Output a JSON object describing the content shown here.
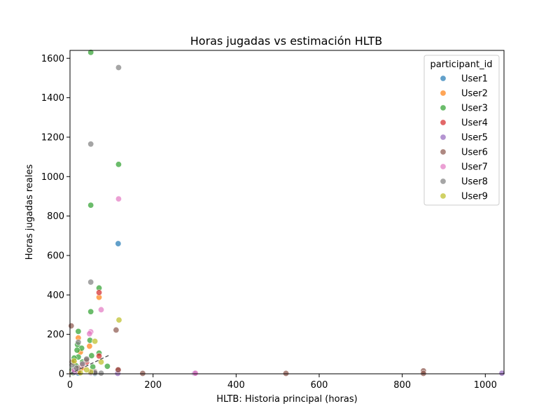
{
  "chart_data": {
    "type": "scatter",
    "title": "Horas jugadas vs estimación HLTB",
    "xlabel": "HLTB: Historia principal (horas)",
    "ylabel": "Horas jugadas reales",
    "xlim": [
      0,
      1045
    ],
    "ylim": [
      0,
      1640
    ],
    "x_ticks": [
      0,
      200,
      400,
      600,
      800,
      1000
    ],
    "y_ticks": [
      0,
      200,
      400,
      600,
      800,
      1000,
      1200,
      1400,
      1600
    ],
    "grid": false,
    "legend": {
      "title": "participant_id",
      "placement": "top-right"
    },
    "reference_line": {
      "style": "dashed",
      "color": "#555555",
      "x": [
        0,
        95
      ],
      "y": [
        0,
        95
      ]
    },
    "series": [
      {
        "name": "User1",
        "color": "#1f77b4",
        "points": [
          [
            116,
            660
          ],
          [
            10,
            6
          ],
          [
            20,
            3
          ],
          [
            60,
            2
          ],
          [
            5,
            12
          ]
        ]
      },
      {
        "name": "User2",
        "color": "#ff7f0e",
        "points": [
          [
            70,
            388
          ],
          [
            47,
            140
          ],
          [
            20,
            182
          ],
          [
            25,
            110
          ],
          [
            10,
            55
          ],
          [
            30,
            30
          ],
          [
            5,
            8
          ]
        ]
      },
      {
        "name": "User3",
        "color": "#2ca02c",
        "points": [
          [
            50,
            1630
          ],
          [
            117,
            1062
          ],
          [
            50,
            855
          ],
          [
            70,
            435
          ],
          [
            50,
            315
          ],
          [
            20,
            215
          ],
          [
            48,
            170
          ],
          [
            18,
            148
          ],
          [
            28,
            130
          ],
          [
            17,
            120
          ],
          [
            70,
            105
          ],
          [
            52,
            92
          ],
          [
            20,
            85
          ],
          [
            10,
            80
          ],
          [
            90,
            38
          ],
          [
            55,
            35
          ],
          [
            30,
            60
          ],
          [
            15,
            40
          ],
          [
            5,
            20
          ],
          [
            8,
            5
          ]
        ]
      },
      {
        "name": "User4",
        "color": "#d62728",
        "points": [
          [
            70,
            412
          ],
          [
            70,
            90
          ],
          [
            116,
            20
          ],
          [
            40,
            60
          ],
          [
            20,
            10
          ]
        ]
      },
      {
        "name": "User5",
        "color": "#9467bd",
        "points": [
          [
            1040,
            3
          ],
          [
            115,
            2
          ],
          [
            300,
            2
          ],
          [
            50,
            5
          ],
          [
            10,
            8
          ]
        ]
      },
      {
        "name": "User6",
        "color": "#8c564b",
        "points": [
          [
            3,
            243
          ],
          [
            111,
            222
          ],
          [
            851,
            15
          ],
          [
            116,
            20
          ],
          [
            175,
            2
          ],
          [
            520,
            2
          ],
          [
            851,
            2
          ],
          [
            40,
            70
          ],
          [
            20,
            30
          ],
          [
            5,
            60
          ],
          [
            60,
            10
          ]
        ]
      },
      {
        "name": "User7",
        "color": "#e377c2",
        "points": [
          [
            117,
            887
          ],
          [
            75,
            325
          ],
          [
            50,
            213
          ],
          [
            47,
            203
          ],
          [
            302,
            3
          ],
          [
            10,
            20
          ],
          [
            30,
            45
          ]
        ]
      },
      {
        "name": "User8",
        "color": "#7f7f7f",
        "points": [
          [
            117,
            1553
          ],
          [
            50,
            1165
          ],
          [
            50,
            465
          ],
          [
            20,
            160
          ],
          [
            40,
            75
          ],
          [
            30,
            50
          ],
          [
            15,
            30
          ],
          [
            60,
            5
          ],
          [
            75,
            3
          ],
          [
            5,
            45
          ]
        ]
      },
      {
        "name": "User9",
        "color": "#bcbd22",
        "points": [
          [
            118,
            273
          ],
          [
            60,
            165
          ],
          [
            75,
            60
          ],
          [
            50,
            10
          ],
          [
            10,
            65
          ],
          [
            25,
            5
          ],
          [
            40,
            20
          ]
        ]
      }
    ]
  }
}
